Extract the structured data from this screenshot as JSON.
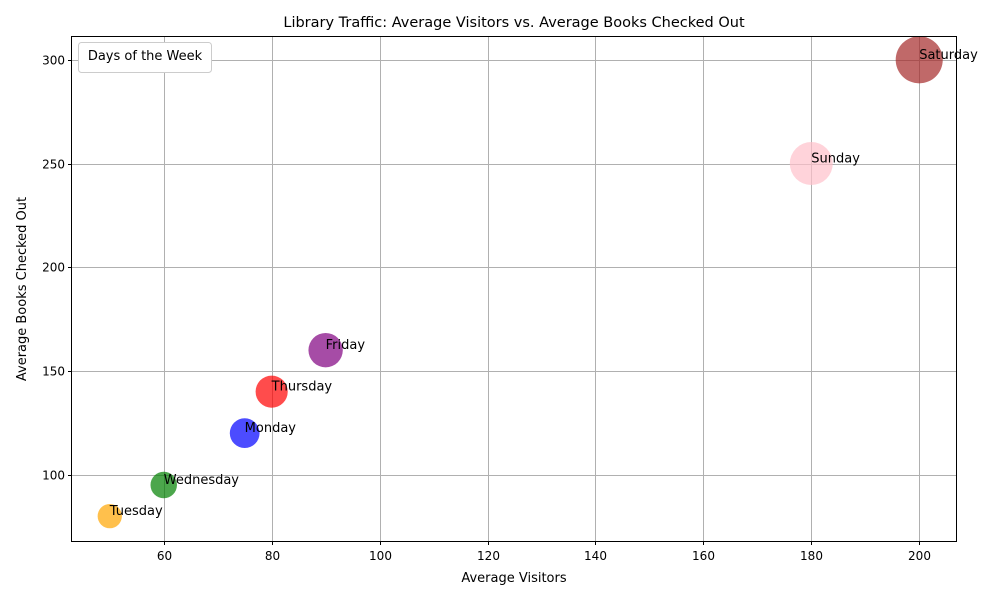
{
  "chart_data": {
    "type": "scatter",
    "title": "Library Traffic: Average Visitors vs. Average Books Checked Out",
    "xlabel": "Average Visitors",
    "ylabel": "Average Books Checked Out",
    "xlim": [
      43,
      207
    ],
    "ylim": [
      68,
      311
    ],
    "xticks": [
      60,
      80,
      100,
      120,
      140,
      160,
      180,
      200
    ],
    "yticks": [
      100,
      150,
      200,
      250,
      300
    ],
    "grid": true,
    "legend": {
      "title": "Days of the Week",
      "placement": "top-left"
    },
    "points": [
      {
        "label": "Monday",
        "x": 75,
        "y": 120,
        "color": "#0000ff",
        "size": 120
      },
      {
        "label": "Tuesday",
        "x": 50,
        "y": 80,
        "color": "#ffa500",
        "size": 80
      },
      {
        "label": "Wednesday",
        "x": 60,
        "y": 95,
        "color": "#008000",
        "size": 95
      },
      {
        "label": "Thursday",
        "x": 80,
        "y": 140,
        "color": "#ff0000",
        "size": 140
      },
      {
        "label": "Friday",
        "x": 90,
        "y": 160,
        "color": "#800080",
        "size": 160
      },
      {
        "label": "Saturday",
        "x": 200,
        "y": 300,
        "color": "#a52a2a",
        "size": 300
      },
      {
        "label": "Sunday",
        "x": 180,
        "y": 250,
        "color": "#ffc0cb",
        "size": 250
      }
    ]
  }
}
